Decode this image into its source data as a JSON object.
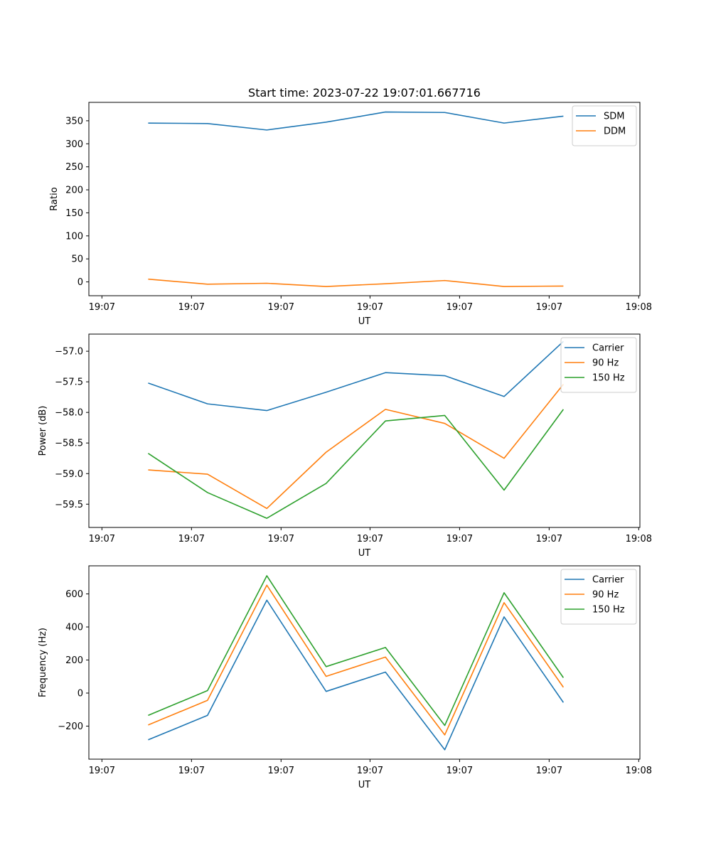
{
  "chart_data": [
    {
      "type": "line",
      "title": "Start time: 2023-07-22 19:07:01.667716",
      "xlabel": "UT",
      "ylabel": "Ratio",
      "xlim": [
        0,
        9.29
      ],
      "x_tick_values": [
        0.22,
        1.73,
        3.24,
        4.74,
        6.25,
        7.76,
        9.27
      ],
      "x_tick_labels": [
        "19:07",
        "19:07",
        "19:07",
        "19:07",
        "19:07",
        "19:07",
        "19:08"
      ],
      "ylim": [
        -30,
        390
      ],
      "y_ticks": [
        0,
        50,
        100,
        150,
        200,
        250,
        300,
        350
      ],
      "y_tick_labels": [
        "0",
        "50",
        "100",
        "150",
        "200",
        "250",
        "300",
        "350"
      ],
      "x": [
        1,
        2,
        3,
        4,
        5,
        6,
        7,
        8
      ],
      "legend_position": "top-right",
      "series": [
        {
          "name": "SDM",
          "color": "#1f77b4",
          "values": [
            345,
            344,
            330,
            347,
            369,
            368,
            345,
            360
          ]
        },
        {
          "name": "DDM",
          "color": "#ff7f0e",
          "values": [
            6,
            -5,
            -3,
            -10,
            -4,
            3,
            -10,
            -9
          ]
        }
      ]
    },
    {
      "type": "line",
      "title": "",
      "xlabel": "UT",
      "ylabel": "Power (dB)",
      "xlim": [
        0,
        9.29
      ],
      "x_tick_values": [
        0.22,
        1.73,
        3.24,
        4.74,
        6.25,
        7.76,
        9.27
      ],
      "x_tick_labels": [
        "19:07",
        "19:07",
        "19:07",
        "19:07",
        "19:07",
        "19:07",
        "19:08"
      ],
      "ylim": [
        -59.88,
        -56.72
      ],
      "y_ticks": [
        -59.5,
        -59.0,
        -58.5,
        -58.0,
        -57.5,
        -57.0
      ],
      "y_tick_labels": [
        "−59.5",
        "−59.0",
        "−58.5",
        "−58.0",
        "−57.5",
        "−57.0"
      ],
      "x": [
        1,
        2,
        3,
        4,
        5,
        6,
        7,
        8
      ],
      "legend_position": "top-right",
      "series": [
        {
          "name": "Carrier",
          "color": "#1f77b4",
          "values": [
            -57.52,
            -57.86,
            -57.97,
            -57.67,
            -57.35,
            -57.4,
            -57.74,
            -56.84
          ]
        },
        {
          "name": "90 Hz",
          "color": "#ff7f0e",
          "values": [
            -58.94,
            -59.01,
            -59.57,
            -58.65,
            -57.95,
            -58.18,
            -58.75,
            -57.54
          ]
        },
        {
          "name": "150 Hz",
          "color": "#2ca02c",
          "values": [
            -58.67,
            -59.31,
            -59.73,
            -59.16,
            -58.14,
            -58.05,
            -59.27,
            -57.95
          ]
        }
      ]
    },
    {
      "type": "line",
      "title": "",
      "xlabel": "UT",
      "ylabel": "Frequency (Hz)",
      "xlim": [
        0,
        9.29
      ],
      "x_tick_values": [
        0.22,
        1.73,
        3.24,
        4.74,
        6.25,
        7.76,
        9.27
      ],
      "x_tick_labels": [
        "19:07",
        "19:07",
        "19:07",
        "19:07",
        "19:07",
        "19:07",
        "19:08"
      ],
      "ylim": [
        -400,
        770
      ],
      "y_ticks": [
        -200,
        0,
        200,
        400,
        600
      ],
      "y_tick_labels": [
        "−200",
        "0",
        "200",
        "400",
        "600"
      ],
      "x": [
        1,
        2,
        3,
        4,
        5,
        6,
        7,
        8
      ],
      "legend_position": "top-right",
      "series": [
        {
          "name": "Carrier",
          "color": "#1f77b4",
          "values": [
            -283,
            -135,
            562,
            10,
            127,
            -343,
            461,
            -57
          ]
        },
        {
          "name": "90 Hz",
          "color": "#ff7f0e",
          "values": [
            -193,
            -44,
            653,
            101,
            218,
            -253,
            547,
            35
          ]
        },
        {
          "name": "150 Hz",
          "color": "#2ca02c",
          "values": [
            -135,
            15,
            710,
            160,
            276,
            -196,
            607,
            93
          ]
        }
      ]
    }
  ]
}
